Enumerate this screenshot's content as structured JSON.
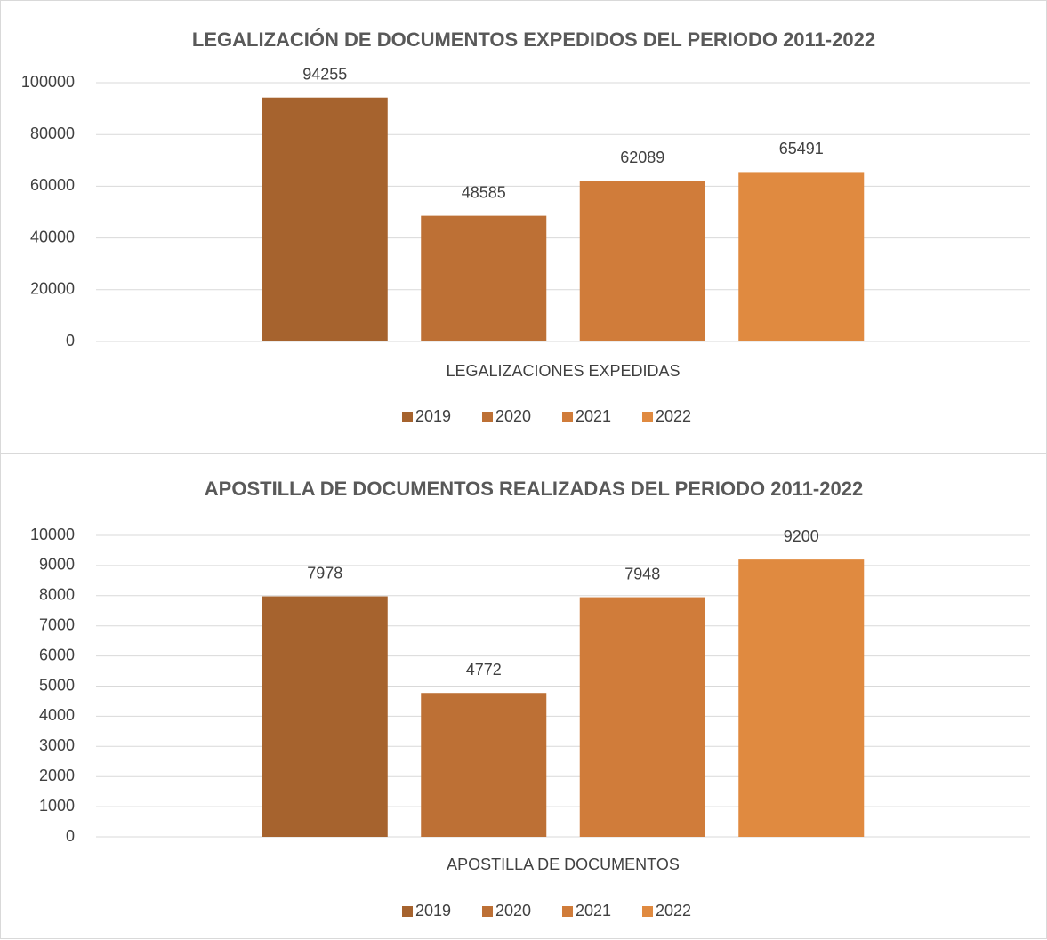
{
  "chart_data": [
    {
      "type": "bar",
      "title": "LEGALIZACIÓN DE DOCUMENTOS EXPEDIDOS DEL PERIODO 2011-2022",
      "categories": [
        "LEGALIZACIONES EXPEDIDAS"
      ],
      "series": [
        {
          "name": "2019",
          "color": "#a6632e",
          "values": [
            94255
          ]
        },
        {
          "name": "2020",
          "color": "#bd7035",
          "values": [
            48585
          ]
        },
        {
          "name": "2021",
          "color": "#d07c3a",
          "values": [
            62089
          ]
        },
        {
          "name": "2022",
          "color": "#e08a40",
          "values": [
            65491
          ]
        }
      ],
      "ylim": [
        0,
        100000
      ],
      "yticks": [
        0,
        20000,
        40000,
        60000,
        80000,
        100000
      ],
      "grid": true,
      "legend": "bottom"
    },
    {
      "type": "bar",
      "title": "APOSTILLA DE DOCUMENTOS REALIZADAS DEL PERIODO 2011-2022",
      "categories": [
        "APOSTILLA DE DOCUMENTOS"
      ],
      "series": [
        {
          "name": "2019",
          "color": "#a6632e",
          "values": [
            7978
          ]
        },
        {
          "name": "2020",
          "color": "#bd7035",
          "values": [
            4772
          ]
        },
        {
          "name": "2021",
          "color": "#d07c3a",
          "values": [
            7948
          ]
        },
        {
          "name": "2022",
          "color": "#e08a40",
          "values": [
            9200
          ]
        }
      ],
      "ylim": [
        0,
        10000
      ],
      "yticks": [
        0,
        1000,
        2000,
        3000,
        4000,
        5000,
        6000,
        7000,
        8000,
        9000,
        10000
      ],
      "grid": true,
      "legend": "bottom"
    }
  ]
}
